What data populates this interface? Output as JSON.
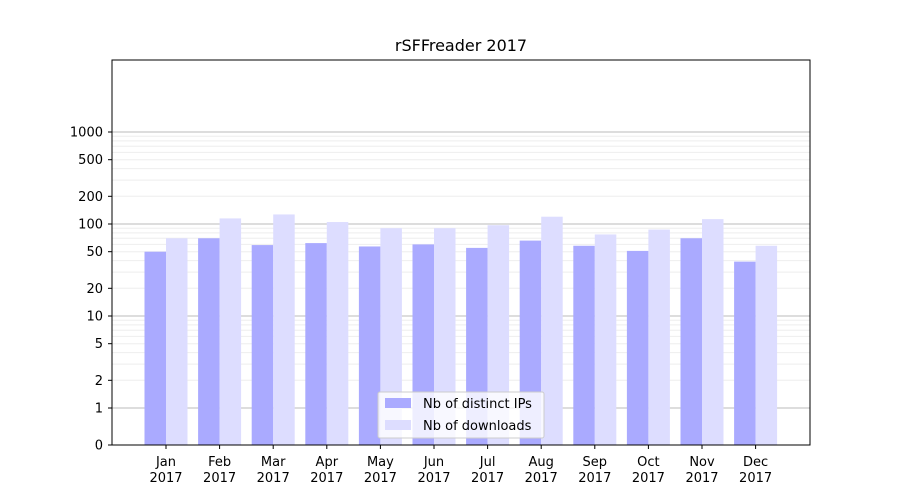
{
  "chart_data": {
    "type": "bar",
    "title": "rSFFreader 2017",
    "xlabel": "",
    "ylabel": "",
    "yscale": "symlog",
    "ylim": [
      0,
      1200
    ],
    "yticks": [
      0,
      1,
      2,
      5,
      10,
      20,
      50,
      100,
      200,
      500,
      1000
    ],
    "grid": true,
    "legend_position": "bottom-center",
    "categories": [
      "Jan\n2017",
      "Feb\n2017",
      "Mar\n2017",
      "Apr\n2017",
      "May\n2017",
      "Jun\n2017",
      "Jul\n2017",
      "Aug\n2017",
      "Sep\n2017",
      "Oct\n2017",
      "Nov\n2017",
      "Dec\n2017"
    ],
    "series": [
      {
        "name": "Nb of distinct IPs",
        "color": "#aaaaff",
        "values": [
          50,
          70,
          59,
          62,
          57,
          60,
          55,
          66,
          58,
          51,
          70,
          39
        ]
      },
      {
        "name": "Nb of downloads",
        "color": "#ddddff",
        "values": [
          70,
          115,
          127,
          105,
          90,
          90,
          97,
          120,
          77,
          87,
          113,
          58
        ]
      }
    ]
  }
}
